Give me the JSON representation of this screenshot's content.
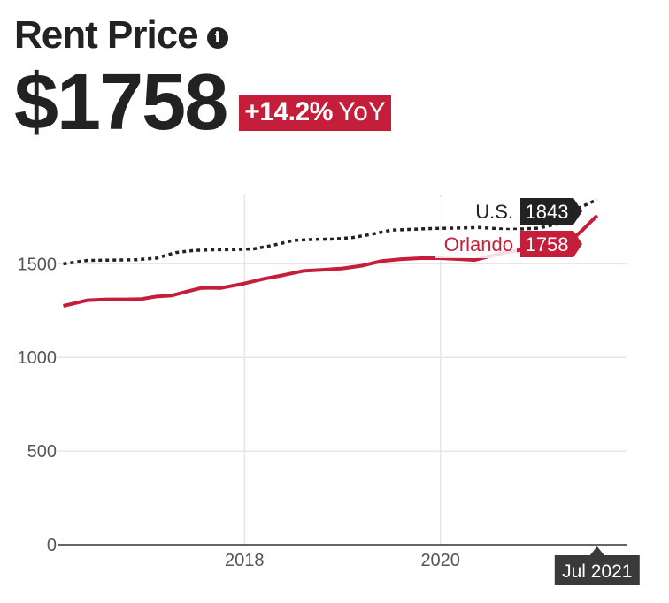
{
  "header": {
    "title": "Rent Price",
    "value": "$1758",
    "change": "+14.2%",
    "change_label": "YoY"
  },
  "tooltip": {
    "date_label": "Jul 2021"
  },
  "colors": {
    "us": "#222222",
    "orlando": "#c41e3a",
    "grid": "#e6e6e6",
    "axis": "#555555",
    "badge": "#c41e3a"
  },
  "icons": {
    "info": "info-icon"
  },
  "chart_data": {
    "type": "line",
    "x_ticks": [
      "2018",
      "2020"
    ],
    "y_ticks": [
      "0",
      "500",
      "1000",
      "1500"
    ],
    "ylim": [
      0,
      1850
    ],
    "xlim": [
      2016.1,
      2021.9
    ],
    "grid": true,
    "series": [
      {
        "name": "U.S.",
        "label_value": "1843",
        "style": "dotted",
        "x": [
          2016.15,
          2016.4,
          2016.7,
          2016.9,
          2017.1,
          2017.3,
          2017.5,
          2017.7,
          2017.9,
          2018.1,
          2018.3,
          2018.5,
          2018.7,
          2018.9,
          2019.1,
          2019.3,
          2019.5,
          2019.7,
          2019.9,
          2020.1,
          2020.4,
          2020.7,
          2021.0,
          2021.25,
          2021.4,
          2021.6
        ],
        "values": [
          1500,
          1518,
          1520,
          1522,
          1530,
          1560,
          1572,
          1575,
          1576,
          1580,
          1600,
          1625,
          1630,
          1632,
          1640,
          1658,
          1680,
          1684,
          1688,
          1690,
          1694,
          1683,
          1690,
          1720,
          1795,
          1843
        ]
      },
      {
        "name": "Orlando",
        "label_value": "1758",
        "style": "solid",
        "x": [
          2016.15,
          2016.4,
          2016.6,
          2016.8,
          2016.95,
          2017.1,
          2017.25,
          2017.4,
          2017.55,
          2017.65,
          2017.75,
          2017.85,
          2018.0,
          2018.2,
          2018.4,
          2018.6,
          2018.8,
          2019.0,
          2019.2,
          2019.4,
          2019.6,
          2019.8,
          2020.0,
          2020.2,
          2020.35,
          2020.5,
          2020.7,
          2020.9,
          2021.1,
          2021.3,
          2021.45,
          2021.6
        ],
        "values": [
          1275,
          1305,
          1310,
          1310,
          1312,
          1325,
          1330,
          1350,
          1370,
          1372,
          1370,
          1380,
          1395,
          1420,
          1440,
          1462,
          1468,
          1475,
          1490,
          1515,
          1525,
          1530,
          1530,
          1525,
          1520,
          1540,
          1565,
          1580,
          1580,
          1610,
          1680,
          1758
        ]
      }
    ]
  }
}
